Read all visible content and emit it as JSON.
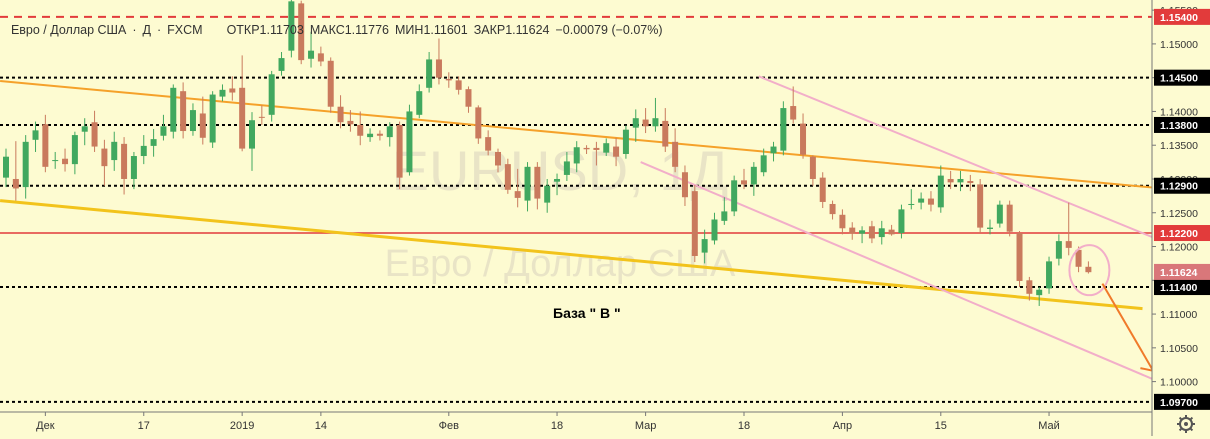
{
  "header": {
    "symbol": "Евро / Доллар США",
    "sep": "·",
    "tf": "Д",
    "source": "FXCM",
    "open_label": "ОТКР",
    "open": "1.11703",
    "high_label": "МАКС",
    "high": "1.11776",
    "low_label": "МИН",
    "low": "1.11601",
    "close_label": "ЗАКР",
    "close": "1.11624",
    "change": "−0.00079 (−0.07%)"
  },
  "watermark": {
    "symbol": "EURUSD, 1Д",
    "name": "Евро / Доллар США"
  },
  "annotation": {
    "base_label": "База  \" В \""
  },
  "colors": {
    "background": "#fdfbd1",
    "up": "#41a85f",
    "down": "#c97a5d",
    "orange_line": "#f5a12a",
    "yellow_line": "#f2c31b",
    "red_line": "#e23b3b",
    "pink_line": "#f2aec9",
    "arrow": "#f07a2a"
  },
  "chart_data": {
    "type": "candlestick",
    "x_tick_labels": [
      "Дек",
      "17",
      "2019",
      "14",
      "Фев",
      "18",
      "Мар",
      "18",
      "Апр",
      "15",
      "Май"
    ],
    "y_range": [
      1.0955,
      1.1565
    ],
    "y_tick_labels": [
      "1.15500",
      "1.15000",
      "1.14500",
      "1.14000",
      "1.13500",
      "1.13000",
      "1.12500",
      "1.12000",
      "1.11500",
      "1.11000",
      "1.10500",
      "1.10000"
    ],
    "level_labels": [
      "1.15400",
      "1.14500",
      "1.13800",
      "1.12900",
      "1.12200",
      "1.11400",
      "1.09700"
    ],
    "horizontal_levels": [
      {
        "value": 1.154,
        "label": "1.15400",
        "style": "dashed",
        "color": "#e23b3b"
      },
      {
        "value": 1.145,
        "label": "1.14500",
        "style": "dotted",
        "color": "#000000"
      },
      {
        "value": 1.138,
        "label": "1.13800",
        "style": "dotted",
        "color": "#000000"
      },
      {
        "value": 1.129,
        "label": "1.12900",
        "style": "dotted",
        "color": "#000000"
      },
      {
        "value": 1.122,
        "label": "1.12200",
        "style": "solid",
        "color": "#e23b3b"
      },
      {
        "value": 1.114,
        "label": "1.11400",
        "style": "dotted",
        "color": "#000000"
      },
      {
        "value": 1.097,
        "label": "1.09700",
        "style": "dotted",
        "color": "#000000"
      }
    ],
    "current_price": {
      "value": 1.11624,
      "label": "1.11624"
    },
    "candles": [
      {
        "o": 1.1302,
        "h": 1.1345,
        "l": 1.1288,
        "c": 1.1333
      },
      {
        "o": 1.13,
        "h": 1.1356,
        "l": 1.1268,
        "c": 1.1286
      },
      {
        "o": 1.1288,
        "h": 1.1365,
        "l": 1.1271,
        "c": 1.1355
      },
      {
        "o": 1.1358,
        "h": 1.1385,
        "l": 1.134,
        "c": 1.1372
      },
      {
        "o": 1.1381,
        "h": 1.1395,
        "l": 1.131,
        "c": 1.1318
      },
      {
        "o": 1.1328,
        "h": 1.134,
        "l": 1.1315,
        "c": 1.1328
      },
      {
        "o": 1.133,
        "h": 1.1345,
        "l": 1.1311,
        "c": 1.1322
      },
      {
        "o": 1.1322,
        "h": 1.137,
        "l": 1.1307,
        "c": 1.1365
      },
      {
        "o": 1.137,
        "h": 1.139,
        "l": 1.135,
        "c": 1.1378
      },
      {
        "o": 1.1384,
        "h": 1.1401,
        "l": 1.134,
        "c": 1.1348
      },
      {
        "o": 1.1345,
        "h": 1.1358,
        "l": 1.129,
        "c": 1.1319
      },
      {
        "o": 1.1328,
        "h": 1.137,
        "l": 1.1312,
        "c": 1.1355
      },
      {
        "o": 1.1352,
        "h": 1.1362,
        "l": 1.1277,
        "c": 1.13
      },
      {
        "o": 1.13,
        "h": 1.134,
        "l": 1.1285,
        "c": 1.1334
      },
      {
        "o": 1.1334,
        "h": 1.1365,
        "l": 1.1322,
        "c": 1.1349
      },
      {
        "o": 1.1349,
        "h": 1.1374,
        "l": 1.1333,
        "c": 1.1359
      },
      {
        "o": 1.1364,
        "h": 1.1395,
        "l": 1.1357,
        "c": 1.1378
      },
      {
        "o": 1.137,
        "h": 1.144,
        "l": 1.136,
        "c": 1.1435
      },
      {
        "o": 1.143,
        "h": 1.1443,
        "l": 1.136,
        "c": 1.1371
      },
      {
        "o": 1.1371,
        "h": 1.1412,
        "l": 1.1364,
        "c": 1.1402
      },
      {
        "o": 1.1397,
        "h": 1.1422,
        "l": 1.1351,
        "c": 1.1361
      },
      {
        "o": 1.1354,
        "h": 1.143,
        "l": 1.1346,
        "c": 1.1425
      },
      {
        "o": 1.1422,
        "h": 1.144,
        "l": 1.1415,
        "c": 1.1432
      },
      {
        "o": 1.1434,
        "h": 1.1452,
        "l": 1.1416,
        "c": 1.1428
      },
      {
        "o": 1.1435,
        "h": 1.1483,
        "l": 1.1341,
        "c": 1.1345
      },
      {
        "o": 1.1345,
        "h": 1.1399,
        "l": 1.1312,
        "c": 1.1387
      },
      {
        "o": 1.1392,
        "h": 1.1409,
        "l": 1.138,
        "c": 1.1391
      },
      {
        "o": 1.1395,
        "h": 1.146,
        "l": 1.1385,
        "c": 1.1455
      },
      {
        "o": 1.146,
        "h": 1.1488,
        "l": 1.1453,
        "c": 1.1479
      },
      {
        "o": 1.149,
        "h": 1.1575,
        "l": 1.148,
        "c": 1.1563
      },
      {
        "o": 1.156,
        "h": 1.1564,
        "l": 1.147,
        "c": 1.1476
      },
      {
        "o": 1.1478,
        "h": 1.1518,
        "l": 1.1465,
        "c": 1.149
      },
      {
        "o": 1.1486,
        "h": 1.1496,
        "l": 1.1467,
        "c": 1.1474
      },
      {
        "o": 1.1475,
        "h": 1.148,
        "l": 1.1398,
        "c": 1.1407
      },
      {
        "o": 1.1407,
        "h": 1.1424,
        "l": 1.1375,
        "c": 1.1384
      },
      {
        "o": 1.1386,
        "h": 1.1402,
        "l": 1.137,
        "c": 1.1381
      },
      {
        "o": 1.138,
        "h": 1.14,
        "l": 1.135,
        "c": 1.1364
      },
      {
        "o": 1.1362,
        "h": 1.1375,
        "l": 1.1355,
        "c": 1.1367
      },
      {
        "o": 1.1367,
        "h": 1.1372,
        "l": 1.1357,
        "c": 1.1364
      },
      {
        "o": 1.1362,
        "h": 1.1384,
        "l": 1.1348,
        "c": 1.1378
      },
      {
        "o": 1.138,
        "h": 1.1385,
        "l": 1.1285,
        "c": 1.1302
      },
      {
        "o": 1.131,
        "h": 1.141,
        "l": 1.1305,
        "c": 1.14
      },
      {
        "o": 1.1395,
        "h": 1.144,
        "l": 1.139,
        "c": 1.143
      },
      {
        "o": 1.1435,
        "h": 1.1488,
        "l": 1.1428,
        "c": 1.1477
      },
      {
        "o": 1.1477,
        "h": 1.1508,
        "l": 1.144,
        "c": 1.145
      },
      {
        "o": 1.1448,
        "h": 1.1458,
        "l": 1.1435,
        "c": 1.1446
      },
      {
        "o": 1.1446,
        "h": 1.1452,
        "l": 1.1425,
        "c": 1.1432
      },
      {
        "o": 1.1433,
        "h": 1.1437,
        "l": 1.1398,
        "c": 1.1407
      },
      {
        "o": 1.1406,
        "h": 1.1409,
        "l": 1.1352,
        "c": 1.136
      },
      {
        "o": 1.1362,
        "h": 1.1372,
        "l": 1.1335,
        "c": 1.1342
      },
      {
        "o": 1.134,
        "h": 1.1345,
        "l": 1.131,
        "c": 1.132
      },
      {
        "o": 1.1322,
        "h": 1.133,
        "l": 1.1278,
        "c": 1.1284
      },
      {
        "o": 1.1282,
        "h": 1.1315,
        "l": 1.1258,
        "c": 1.1272
      },
      {
        "o": 1.1268,
        "h": 1.1325,
        "l": 1.1252,
        "c": 1.1318
      },
      {
        "o": 1.1318,
        "h": 1.1325,
        "l": 1.1255,
        "c": 1.1271
      },
      {
        "o": 1.1265,
        "h": 1.13,
        "l": 1.125,
        "c": 1.129
      },
      {
        "o": 1.1296,
        "h": 1.1308,
        "l": 1.1276,
        "c": 1.13
      },
      {
        "o": 1.1306,
        "h": 1.134,
        "l": 1.1297,
        "c": 1.1326
      },
      {
        "o": 1.1323,
        "h": 1.1356,
        "l": 1.131,
        "c": 1.1347
      },
      {
        "o": 1.1346,
        "h": 1.135,
        "l": 1.1337,
        "c": 1.1344
      },
      {
        "o": 1.1346,
        "h": 1.1355,
        "l": 1.132,
        "c": 1.1343
      },
      {
        "o": 1.1339,
        "h": 1.136,
        "l": 1.1334,
        "c": 1.1353
      },
      {
        "o": 1.1348,
        "h": 1.1361,
        "l": 1.1319,
        "c": 1.1333
      },
      {
        "o": 1.1337,
        "h": 1.1379,
        "l": 1.133,
        "c": 1.1373
      },
      {
        "o": 1.1376,
        "h": 1.1403,
        "l": 1.1355,
        "c": 1.139
      },
      {
        "o": 1.1388,
        "h": 1.1405,
        "l": 1.1368,
        "c": 1.1378
      },
      {
        "o": 1.1378,
        "h": 1.142,
        "l": 1.137,
        "c": 1.139
      },
      {
        "o": 1.1386,
        "h": 1.1405,
        "l": 1.134,
        "c": 1.1348
      },
      {
        "o": 1.1355,
        "h": 1.1375,
        "l": 1.131,
        "c": 1.1318
      },
      {
        "o": 1.131,
        "h": 1.132,
        "l": 1.126,
        "c": 1.1273
      },
      {
        "o": 1.1282,
        "h": 1.1291,
        "l": 1.1177,
        "c": 1.1186
      },
      {
        "o": 1.1191,
        "h": 1.1225,
        "l": 1.1175,
        "c": 1.1211
      },
      {
        "o": 1.1209,
        "h": 1.125,
        "l": 1.1203,
        "c": 1.124
      },
      {
        "o": 1.1238,
        "h": 1.1273,
        "l": 1.1232,
        "c": 1.1252
      },
      {
        "o": 1.1252,
        "h": 1.1305,
        "l": 1.1245,
        "c": 1.1298
      },
      {
        "o": 1.1298,
        "h": 1.1315,
        "l": 1.1285,
        "c": 1.1292
      },
      {
        "o": 1.1292,
        "h": 1.1325,
        "l": 1.1275,
        "c": 1.1318
      },
      {
        "o": 1.131,
        "h": 1.1345,
        "l": 1.1304,
        "c": 1.1335
      },
      {
        "o": 1.1338,
        "h": 1.1355,
        "l": 1.1326,
        "c": 1.1348
      },
      {
        "o": 1.1342,
        "h": 1.1415,
        "l": 1.1335,
        "c": 1.1405
      },
      {
        "o": 1.1408,
        "h": 1.1437,
        "l": 1.1382,
        "c": 1.1388
      },
      {
        "o": 1.1382,
        "h": 1.1397,
        "l": 1.133,
        "c": 1.1336
      },
      {
        "o": 1.1333,
        "h": 1.1335,
        "l": 1.129,
        "c": 1.13
      },
      {
        "o": 1.1302,
        "h": 1.131,
        "l": 1.1257,
        "c": 1.1266
      },
      {
        "o": 1.1263,
        "h": 1.1268,
        "l": 1.124,
        "c": 1.1248
      },
      {
        "o": 1.1247,
        "h": 1.1255,
        "l": 1.1218,
        "c": 1.1227
      },
      {
        "o": 1.1228,
        "h": 1.1236,
        "l": 1.121,
        "c": 1.1219
      },
      {
        "o": 1.1219,
        "h": 1.123,
        "l": 1.1205,
        "c": 1.1224
      },
      {
        "o": 1.123,
        "h": 1.1238,
        "l": 1.1205,
        "c": 1.1212
      },
      {
        "o": 1.1214,
        "h": 1.1238,
        "l": 1.1203,
        "c": 1.1227
      },
      {
        "o": 1.1225,
        "h": 1.1232,
        "l": 1.1216,
        "c": 1.1218
      },
      {
        "o": 1.122,
        "h": 1.1262,
        "l": 1.1212,
        "c": 1.1255
      },
      {
        "o": 1.1262,
        "h": 1.1285,
        "l": 1.1255,
        "c": 1.1263
      },
      {
        "o": 1.1265,
        "h": 1.128,
        "l": 1.1255,
        "c": 1.1271
      },
      {
        "o": 1.1271,
        "h": 1.1282,
        "l": 1.1252,
        "c": 1.1262
      },
      {
        "o": 1.1258,
        "h": 1.132,
        "l": 1.125,
        "c": 1.1305
      },
      {
        "o": 1.13,
        "h": 1.1312,
        "l": 1.1285,
        "c": 1.1295
      },
      {
        "o": 1.1295,
        "h": 1.1312,
        "l": 1.1282,
        "c": 1.13
      },
      {
        "o": 1.1297,
        "h": 1.1306,
        "l": 1.1282,
        "c": 1.1294
      },
      {
        "o": 1.1292,
        "h": 1.13,
        "l": 1.122,
        "c": 1.1228
      },
      {
        "o": 1.1226,
        "h": 1.124,
        "l": 1.1218,
        "c": 1.1228
      },
      {
        "o": 1.1234,
        "h": 1.1268,
        "l": 1.1228,
        "c": 1.1262
      },
      {
        "o": 1.1262,
        "h": 1.1268,
        "l": 1.1215,
        "c": 1.1222
      },
      {
        "o": 1.122,
        "h": 1.1223,
        "l": 1.114,
        "c": 1.1149
      },
      {
        "o": 1.115,
        "h": 1.1155,
        "l": 1.112,
        "c": 1.113
      },
      {
        "o": 1.1128,
        "h": 1.114,
        "l": 1.1112,
        "c": 1.1136
      },
      {
        "o": 1.1138,
        "h": 1.1185,
        "l": 1.113,
        "c": 1.1178
      },
      {
        "o": 1.1182,
        "h": 1.1218,
        "l": 1.1172,
        "c": 1.1208
      },
      {
        "o": 1.1208,
        "h": 1.1265,
        "l": 1.1187,
        "c": 1.1198
      },
      {
        "o": 1.1195,
        "h": 1.12,
        "l": 1.1162,
        "c": 1.117
      },
      {
        "o": 1.117,
        "h": 1.1178,
        "l": 1.116,
        "c": 1.1162
      }
    ]
  }
}
